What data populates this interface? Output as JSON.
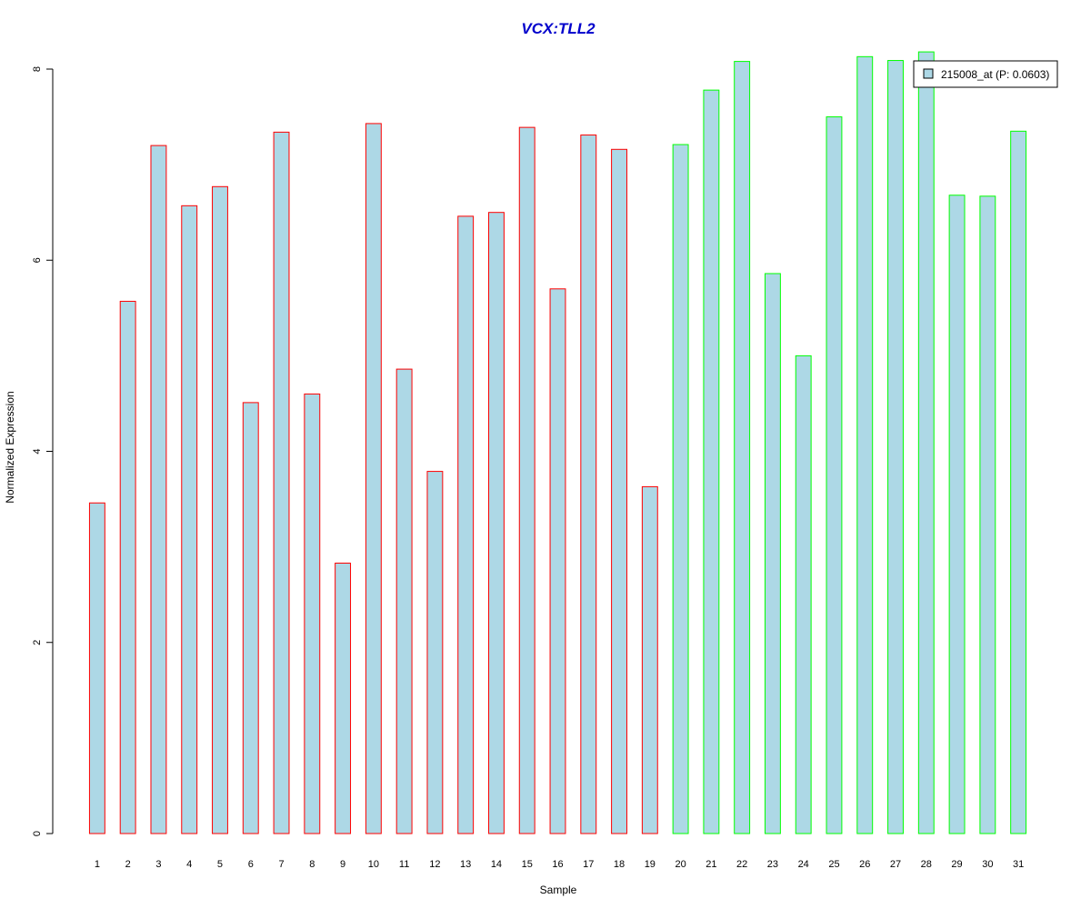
{
  "chart_data": {
    "type": "bar",
    "title": "VCX:TLL2",
    "xlabel": "Sample",
    "ylabel": "Normalized Expression",
    "categories": [
      "1",
      "2",
      "3",
      "4",
      "5",
      "6",
      "7",
      "8",
      "9",
      "10",
      "11",
      "12",
      "13",
      "14",
      "15",
      "16",
      "17",
      "18",
      "19",
      "20",
      "21",
      "22",
      "23",
      "24",
      "25",
      "26",
      "27",
      "28",
      "29",
      "30",
      "31"
    ],
    "values": [
      3.46,
      5.57,
      7.2,
      6.57,
      6.77,
      4.51,
      7.34,
      4.6,
      2.83,
      7.43,
      4.86,
      3.79,
      6.46,
      6.5,
      7.39,
      5.7,
      7.31,
      7.16,
      3.63,
      7.21,
      7.78,
      8.08,
      5.86,
      5.0,
      7.5,
      8.13,
      8.09,
      8.18,
      6.68,
      6.67,
      7.35
    ],
    "group_a_count": 19,
    "ylim": [
      0,
      8
    ],
    "yticks": [
      0,
      2,
      4,
      6,
      8
    ],
    "grid": false,
    "legend": {
      "position": "top-right",
      "entries": [
        {
          "label": "215008_at (P: 0.0603)",
          "color": "#add8e6"
        }
      ]
    },
    "colors": {
      "bar_fill": "#add8e6",
      "group_a_border": "#ff0000",
      "group_b_border": "#00ff00",
      "title": "#0000cc"
    }
  }
}
